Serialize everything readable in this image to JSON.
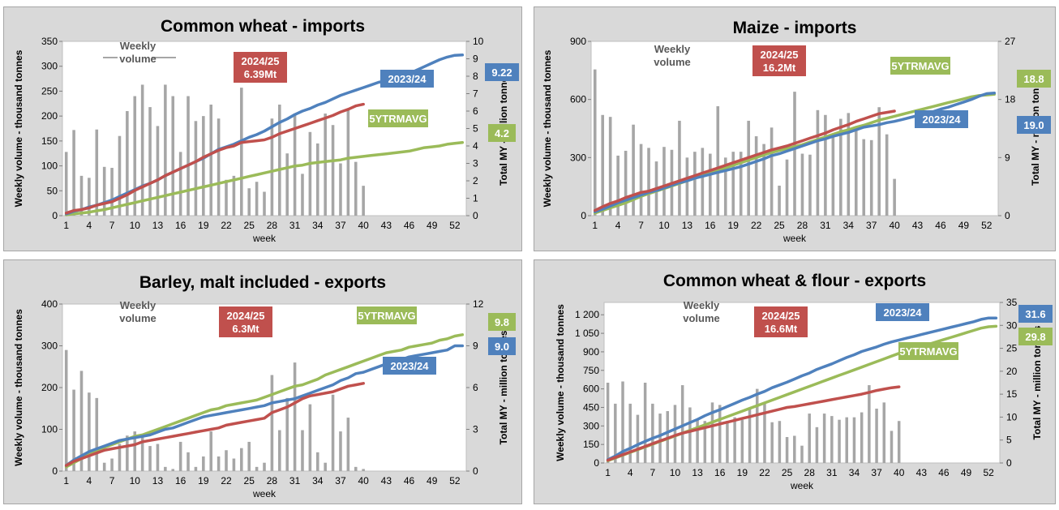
{
  "charts": [
    {
      "title": "Common wheat - imports",
      "type": "bar+line",
      "ylabel_left": "Weekly volume - thousand tonnes",
      "ylabel_right": "Total MY - million tonnes",
      "xlabel": "week",
      "left_ticks": [
        0,
        50,
        100,
        150,
        200,
        250,
        300,
        350
      ],
      "left_tick_labels": [
        "0",
        "50",
        "100",
        "150",
        "200",
        "250",
        "300",
        "350"
      ],
      "right_ticks": [
        0,
        1,
        2,
        3,
        4,
        5,
        6,
        7,
        8,
        9,
        10
      ],
      "right_tick_labels": [
        "0",
        "1",
        "2",
        "3",
        "4",
        "5",
        "6",
        "7",
        "8",
        "9",
        "10"
      ],
      "left_max": 350,
      "right_max": 10,
      "x_ticks": [
        1,
        4,
        7,
        10,
        13,
        16,
        19,
        22,
        25,
        28,
        31,
        34,
        37,
        40,
        43,
        46,
        49,
        52
      ],
      "weekly_label": "Weekly\nvolume",
      "weekly_values": [
        128,
        172,
        80,
        76,
        173,
        98,
        96,
        160,
        210,
        240,
        263,
        218,
        180,
        263,
        240,
        128,
        240,
        190,
        200,
        223,
        195,
        72,
        80,
        257,
        55,
        68,
        48,
        195,
        223,
        125,
        205,
        84,
        168,
        145,
        205,
        182,
        105,
        212,
        108,
        60
      ],
      "current_label": "2024/25\n6.39Mt",
      "current_values": [
        0.15,
        0.3,
        0.35,
        0.45,
        0.6,
        0.7,
        0.8,
        1.0,
        1.2,
        1.45,
        1.65,
        1.85,
        2.05,
        2.3,
        2.5,
        2.7,
        2.9,
        3.1,
        3.35,
        3.55,
        3.75,
        3.9,
        4.0,
        4.2,
        4.25,
        4.3,
        4.35,
        4.5,
        4.7,
        4.85,
        5.0,
        5.15,
        5.3,
        5.45,
        5.6,
        5.75,
        5.95,
        6.1,
        6.3,
        6.39
      ],
      "prev_label": "2023/24",
      "prev_end_label": "9.22",
      "prev_values": [
        0.1,
        0.25,
        0.35,
        0.5,
        0.6,
        0.75,
        0.9,
        1.1,
        1.3,
        1.5,
        1.7,
        1.85,
        2.05,
        2.3,
        2.5,
        2.7,
        2.9,
        3.1,
        3.3,
        3.55,
        3.8,
        3.95,
        4.1,
        4.3,
        4.5,
        4.65,
        4.85,
        5.1,
        5.35,
        5.55,
        5.8,
        6.0,
        6.15,
        6.35,
        6.5,
        6.7,
        6.9,
        7.05,
        7.2,
        7.35,
        7.5,
        7.65,
        7.75,
        7.85,
        7.95,
        8.15,
        8.35,
        8.55,
        8.75,
        8.95,
        9.1,
        9.2,
        9.22
      ],
      "avg_label": "5YTRMAVG",
      "avg_end_label": "4.2",
      "avg_values": [
        0.05,
        0.1,
        0.15,
        0.2,
        0.28,
        0.35,
        0.45,
        0.55,
        0.65,
        0.75,
        0.85,
        0.95,
        1.05,
        1.15,
        1.25,
        1.35,
        1.45,
        1.55,
        1.65,
        1.75,
        1.85,
        1.95,
        2.05,
        2.15,
        2.25,
        2.35,
        2.45,
        2.55,
        2.65,
        2.75,
        2.85,
        2.9,
        3.0,
        3.05,
        3.1,
        3.15,
        3.2,
        3.3,
        3.35,
        3.4,
        3.45,
        3.5,
        3.55,
        3.6,
        3.65,
        3.7,
        3.8,
        3.9,
        3.95,
        4.0,
        4.1,
        4.15,
        4.2
      ]
    },
    {
      "title": "Maize - imports",
      "type": "bar+line",
      "ylabel_left": "Weekly volume - thousand tonnes",
      "ylabel_right": "Total MY - million tonnes",
      "xlabel": "week",
      "left_ticks": [
        0,
        300,
        600,
        900
      ],
      "left_tick_labels": [
        "0",
        "300",
        "600",
        "900"
      ],
      "right_ticks": [
        0,
        9,
        18,
        27
      ],
      "right_tick_labels": [
        "0",
        "9",
        "18",
        "27"
      ],
      "left_max": 900,
      "right_max": 27,
      "x_ticks": [
        1,
        4,
        7,
        10,
        13,
        16,
        19,
        22,
        25,
        28,
        31,
        34,
        37,
        40,
        43,
        46,
        49,
        52
      ],
      "weekly_label": "Weekly\nvolume",
      "weekly_values": [
        755,
        520,
        510,
        310,
        335,
        470,
        370,
        350,
        280,
        355,
        340,
        490,
        300,
        330,
        350,
        320,
        565,
        300,
        330,
        330,
        490,
        410,
        370,
        455,
        155,
        290,
        640,
        320,
        315,
        545,
        520,
        420,
        500,
        530,
        460,
        395,
        390,
        560,
        420,
        190
      ],
      "current_label": "2024/25\n16.2Mt",
      "current_values": [
        0.8,
        1.4,
        1.9,
        2.3,
        2.8,
        3.2,
        3.6,
        3.8,
        4.2,
        4.6,
        5.0,
        5.4,
        5.8,
        6.2,
        6.6,
        7.0,
        7.4,
        7.8,
        8.2,
        8.6,
        9.0,
        9.4,
        9.8,
        10.2,
        10.5,
        10.8,
        11.2,
        11.6,
        12.0,
        12.4,
        12.8,
        13.3,
        13.7,
        14.1,
        14.6,
        15.0,
        15.4,
        15.8,
        16.0,
        16.2
      ],
      "prev_label": "2023/24",
      "prev_end_label": "19.0",
      "prev_values": [
        0.6,
        1.0,
        1.5,
        2.0,
        2.4,
        2.8,
        3.2,
        3.6,
        3.9,
        4.3,
        4.7,
        5.1,
        5.4,
        5.8,
        6.1,
        6.4,
        6.7,
        7.0,
        7.3,
        7.6,
        8.0,
        8.4,
        8.8,
        9.3,
        9.6,
        10.0,
        10.4,
        10.8,
        11.2,
        11.6,
        11.9,
        12.3,
        12.6,
        12.9,
        13.3,
        13.7,
        13.9,
        14.1,
        14.4,
        14.6,
        14.9,
        15.2,
        15.5,
        15.8,
        16.1,
        16.5,
        16.8,
        17.2,
        17.6,
        18.0,
        18.5,
        18.9,
        19.0
      ],
      "avg_label": "5YTRMAVG",
      "avg_end_label": "18.8",
      "avg_values": [
        0.4,
        0.8,
        1.2,
        1.6,
        2.0,
        2.5,
        3.0,
        3.4,
        3.8,
        4.2,
        4.6,
        5.0,
        5.4,
        5.8,
        6.2,
        6.6,
        7.0,
        7.4,
        7.8,
        8.2,
        8.6,
        9.0,
        9.4,
        9.8,
        10.1,
        10.4,
        10.7,
        11.0,
        11.4,
        11.8,
        12.2,
        12.6,
        13.0,
        13.3,
        13.7,
        14.0,
        14.4,
        14.8,
        15.1,
        15.4,
        15.7,
        16.0,
        16.3,
        16.6,
        16.9,
        17.2,
        17.5,
        17.8,
        18.1,
        18.4,
        18.6,
        18.7,
        18.8
      ]
    },
    {
      "title": "Barley, malt included - exports",
      "type": "bar+line",
      "ylabel_left": "Weekly volume - thousand tonnes",
      "ylabel_right": "Total MY - million tonnes",
      "xlabel": "week",
      "left_ticks": [
        0,
        100,
        200,
        300,
        400
      ],
      "left_tick_labels": [
        "0",
        "100",
        "200",
        "300",
        "400"
      ],
      "right_ticks": [
        0,
        3,
        6,
        9,
        12
      ],
      "right_tick_labels": [
        "0",
        "3",
        "6",
        "9",
        "12"
      ],
      "left_max": 400,
      "right_max": 12,
      "x_ticks": [
        1,
        4,
        7,
        10,
        13,
        16,
        19,
        22,
        25,
        28,
        31,
        34,
        37,
        40,
        43,
        46,
        49,
        52
      ],
      "weekly_label": "Weekly\nvolume",
      "weekly_values": [
        290,
        195,
        240,
        188,
        175,
        20,
        30,
        65,
        85,
        95,
        88,
        60,
        65,
        10,
        5,
        70,
        45,
        10,
        35,
        95,
        35,
        50,
        30,
        55,
        70,
        10,
        20,
        230,
        98,
        175,
        260,
        98,
        160,
        45,
        20,
        183,
        95,
        128,
        10,
        5
      ],
      "current_label": "2024/25\n6.3Mt",
      "current_values": [
        0.4,
        0.7,
        0.9,
        1.1,
        1.3,
        1.5,
        1.6,
        1.7,
        1.8,
        1.9,
        2.1,
        2.2,
        2.3,
        2.4,
        2.5,
        2.6,
        2.7,
        2.8,
        2.9,
        3.0,
        3.1,
        3.3,
        3.4,
        3.5,
        3.6,
        3.7,
        3.8,
        4.2,
        4.4,
        4.6,
        4.9,
        5.2,
        5.4,
        5.5,
        5.6,
        5.7,
        5.9,
        6.1,
        6.2,
        6.3
      ],
      "prev_label": "2023/24",
      "prev_end_label": "9.0",
      "prev_values": [
        0.4,
        0.8,
        1.1,
        1.4,
        1.6,
        1.8,
        2.0,
        2.2,
        2.3,
        2.4,
        2.5,
        2.6,
        2.8,
        3.0,
        3.1,
        3.3,
        3.5,
        3.7,
        3.9,
        4.0,
        4.1,
        4.2,
        4.3,
        4.4,
        4.5,
        4.6,
        4.7,
        4.9,
        5.0,
        5.1,
        5.2,
        5.4,
        5.6,
        5.8,
        6.0,
        6.2,
        6.5,
        6.7,
        7.0,
        7.1,
        7.3,
        7.5,
        7.7,
        7.9,
        8.0,
        8.2,
        8.3,
        8.4,
        8.5,
        8.6,
        8.7,
        9.0,
        9.0
      ],
      "avg_label": "5YTRMAVG",
      "avg_end_label": "9.8",
      "avg_values": [
        0.3,
        0.6,
        0.9,
        1.2,
        1.5,
        1.7,
        1.9,
        2.1,
        2.3,
        2.5,
        2.6,
        2.8,
        3.0,
        3.2,
        3.4,
        3.6,
        3.8,
        4.0,
        4.2,
        4.4,
        4.5,
        4.7,
        4.8,
        4.9,
        5.0,
        5.1,
        5.3,
        5.5,
        5.7,
        5.9,
        6.1,
        6.2,
        6.4,
        6.6,
        6.9,
        7.1,
        7.3,
        7.5,
        7.7,
        7.9,
        8.1,
        8.3,
        8.5,
        8.6,
        8.7,
        8.9,
        9.0,
        9.1,
        9.2,
        9.4,
        9.5,
        9.7,
        9.8
      ]
    },
    {
      "title": "Common wheat & flour - exports",
      "type": "bar+line",
      "ylabel_left": "Weekly volume - thousand tonnes",
      "ylabel_right": "Total MY - million tonnes",
      "xlabel": "week",
      "left_ticks": [
        0,
        150,
        300,
        450,
        600,
        750,
        900,
        1050,
        1200
      ],
      "left_tick_labels": [
        "0",
        "150",
        "300",
        "450",
        "600",
        "750",
        "900",
        "1 050",
        "1 200"
      ],
      "right_ticks": [
        0,
        5,
        10,
        15,
        20,
        25,
        30,
        35
      ],
      "right_tick_labels": [
        "0",
        "5",
        "10",
        "15",
        "20",
        "25",
        "30",
        "35"
      ],
      "left_max": 1300,
      "right_max": 35,
      "x_ticks": [
        1,
        4,
        7,
        10,
        13,
        16,
        19,
        22,
        25,
        28,
        31,
        34,
        37,
        40,
        43,
        46,
        49,
        52
      ],
      "weekly_label": "Weekly\nvolume",
      "weekly_values": [
        650,
        480,
        660,
        480,
        390,
        650,
        480,
        400,
        420,
        470,
        630,
        450,
        350,
        340,
        490,
        470,
        340,
        370,
        350,
        450,
        600,
        480,
        330,
        340,
        210,
        220,
        140,
        400,
        290,
        400,
        380,
        350,
        370,
        370,
        410,
        630,
        440,
        490,
        260,
        340
      ],
      "current_label": "2024/25\n16.6Mt",
      "current_values": [
        0.6,
        1.2,
        1.8,
        2.4,
        3.0,
        3.6,
        4.2,
        4.8,
        5.4,
        6.0,
        6.5,
        6.9,
        7.3,
        7.7,
        8.1,
        8.5,
        8.9,
        9.3,
        9.7,
        10.1,
        10.5,
        10.9,
        11.3,
        11.7,
        12.1,
        12.3,
        12.6,
        12.9,
        13.2,
        13.5,
        13.8,
        14.1,
        14.4,
        14.7,
        15.0,
        15.4,
        15.8,
        16.1,
        16.4,
        16.6
      ],
      "prev_label": "2023/24",
      "prev_end_label": "31.6",
      "prev_values": [
        0.7,
        1.5,
        2.5,
        3.2,
        4.0,
        4.7,
        5.4,
        6.0,
        6.7,
        7.4,
        8.1,
        8.8,
        9.5,
        10.3,
        11.0,
        11.6,
        12.3,
        13.0,
        13.7,
        14.3,
        15.0,
        15.6,
        16.4,
        17.0,
        17.6,
        18.3,
        19.0,
        19.6,
        20.4,
        21.0,
        21.6,
        22.3,
        23.0,
        23.6,
        24.3,
        24.8,
        25.3,
        25.9,
        26.4,
        26.8,
        27.2,
        27.6,
        28.0,
        28.4,
        28.8,
        29.2,
        29.6,
        30.0,
        30.4,
        30.8,
        31.3,
        31.6,
        31.6
      ],
      "avg_label": "5YTRMAVG",
      "avg_end_label": "29.8",
      "avg_values": [
        0.5,
        1.1,
        1.7,
        2.3,
        2.9,
        3.5,
        4.1,
        4.7,
        5.3,
        5.9,
        6.5,
        7.1,
        7.7,
        8.3,
        8.9,
        9.5,
        10.1,
        10.7,
        11.3,
        11.9,
        12.5,
        13.1,
        13.7,
        14.3,
        14.9,
        15.5,
        16.1,
        16.7,
        17.3,
        17.9,
        18.5,
        19.1,
        19.7,
        20.3,
        20.9,
        21.5,
        22.1,
        22.7,
        23.3,
        23.9,
        24.4,
        24.9,
        25.4,
        25.9,
        26.4,
        26.9,
        27.4,
        27.9,
        28.4,
        28.9,
        29.4,
        29.7,
        29.8
      ]
    }
  ],
  "colors": {
    "bars": "#a6a6a6",
    "current": "#c0504d",
    "prev": "#4f81bd",
    "avg": "#9bbb59",
    "panel_bg": "#d9d9d9",
    "plot_bg": "#ffffff"
  }
}
